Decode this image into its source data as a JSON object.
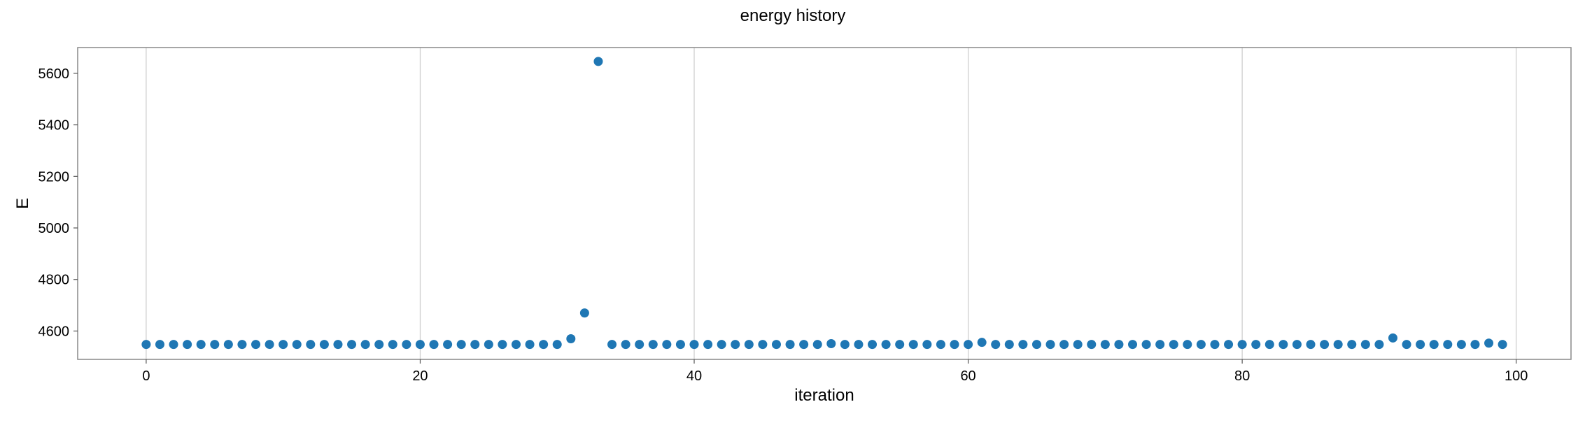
{
  "chart_data": {
    "type": "scatter",
    "title": "energy history",
    "xlabel": "iteration",
    "ylabel": "E",
    "xlim": [
      -5,
      104
    ],
    "ylim": [
      4490,
      5700
    ],
    "xticks": [
      0,
      20,
      40,
      60,
      80,
      100
    ],
    "yticks": [
      4600,
      4800,
      5000,
      5200,
      5400,
      5600
    ],
    "grid": "vertical",
    "marker_color": "#1f77b4",
    "series": [
      {
        "x": [
          0,
          1,
          2,
          3,
          4,
          5,
          6,
          7,
          8,
          9,
          10,
          11,
          12,
          13,
          14,
          15,
          16,
          17,
          18,
          19,
          20,
          21,
          22,
          23,
          24,
          25,
          26,
          27,
          28,
          29,
          30,
          31,
          32,
          33,
          34,
          35,
          36,
          37,
          38,
          39,
          40,
          41,
          42,
          43,
          44,
          45,
          46,
          47,
          48,
          49,
          50,
          51,
          52,
          53,
          54,
          55,
          56,
          57,
          58,
          59,
          60,
          61,
          62,
          63,
          64,
          65,
          66,
          67,
          68,
          69,
          70,
          71,
          72,
          73,
          74,
          75,
          76,
          77,
          78,
          79,
          80,
          81,
          82,
          83,
          84,
          85,
          86,
          87,
          88,
          89,
          90,
          91,
          92,
          93,
          94,
          95,
          96,
          97,
          98,
          99
        ],
        "y": [
          4548,
          4548,
          4548,
          4548,
          4548,
          4548,
          4548,
          4548,
          4548,
          4548,
          4548,
          4548,
          4548,
          4548,
          4548,
          4548,
          4548,
          4548,
          4548,
          4548,
          4548,
          4548,
          4548,
          4548,
          4548,
          4548,
          4548,
          4548,
          4548,
          4548,
          4548,
          4570,
          4670,
          5646,
          4548,
          4548,
          4548,
          4548,
          4548,
          4548,
          4548,
          4548,
          4548,
          4548,
          4548,
          4548,
          4548,
          4548,
          4548,
          4548,
          4551,
          4548,
          4548,
          4548,
          4548,
          4548,
          4548,
          4548,
          4548,
          4548,
          4548,
          4556,
          4548,
          4548,
          4548,
          4548,
          4548,
          4548,
          4548,
          4548,
          4548,
          4548,
          4548,
          4548,
          4548,
          4548,
          4548,
          4548,
          4548,
          4548,
          4548,
          4548,
          4548,
          4548,
          4548,
          4548,
          4548,
          4548,
          4548,
          4548,
          4548,
          4573,
          4548,
          4548,
          4548,
          4548,
          4548,
          4548,
          4553,
          4548
        ]
      }
    ]
  }
}
